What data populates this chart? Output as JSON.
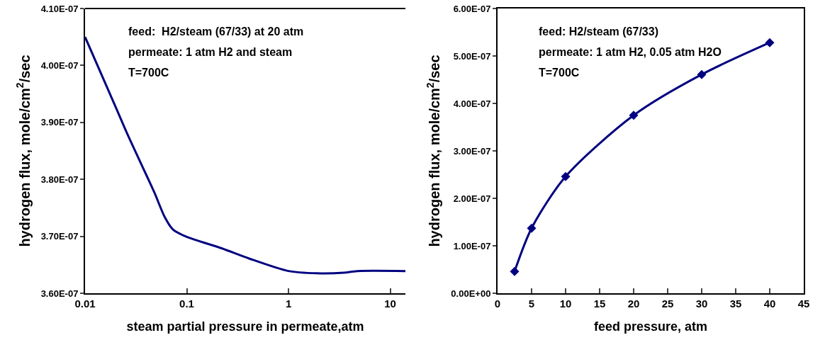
{
  "chart_data": [
    {
      "type": "line",
      "xlabel": "steam partial pressure in permeate,atm",
      "ylabel": "hydrogen flux, mole/cm$^{2}$/sec",
      "annotations": [
        "feed:  H2/steam (67/33) at 20 atm",
        "permeate: 1 atm H2 and steam",
        "T=700C"
      ],
      "x": [
        0.01,
        0.02,
        0.026,
        0.035,
        0.048,
        0.061,
        0.073,
        0.1,
        0.22,
        0.41,
        1,
        1.89,
        3.47,
        4.73,
        14.1
      ],
      "series": [
        {
          "color": "#000080",
          "values": [
            4.05e-07,
            3.927e-07,
            3.88e-07,
            3.83e-07,
            3.777e-07,
            3.733e-07,
            3.712e-07,
            3.699e-07,
            3.679e-07,
            3.661e-07,
            3.639e-07,
            3.635e-07,
            3.636e-07,
            3.639e-07,
            3.639e-07
          ]
        }
      ],
      "log": "x",
      "xlim": [
        0.01,
        14.1
      ],
      "xticks": [
        0.01,
        0.1,
        1,
        10
      ],
      "ylim": [
        3.6e-07,
        4.1e-07
      ],
      "yticks": [
        {
          "value": 3.6e-07,
          "label": "3.60E-07"
        },
        {
          "value": 3.7e-07,
          "label": "3.70E-07"
        },
        {
          "value": 3.8e-07,
          "label": "3.80E-07"
        },
        {
          "value": 3.9e-07,
          "label": "3.90E-07"
        },
        {
          "value": 4e-07,
          "label": "4.00E-07"
        },
        {
          "value": 4.1e-07,
          "label": "4.10E-07"
        }
      ],
      "grid": false,
      "marker": "none",
      "line_style": "solid"
    },
    {
      "type": "line",
      "xlabel": "feed pressure, atm",
      "ylabel": "hydrogen flux, mole/cm$^{2}$/sec",
      "annotations": [
        "feed: H2/steam (67/33)",
        "permeate: 1 atm H2, 0.05 atm H2O",
        "T=700C"
      ],
      "x": [
        2.5,
        5,
        10,
        20,
        30,
        40
      ],
      "series": [
        {
          "color": "#000080",
          "values": [
            4.6e-08,
            1.37e-07,
            2.46e-07,
            3.75e-07,
            4.61e-07,
            5.28e-07
          ]
        }
      ],
      "xlim": [
        0,
        45
      ],
      "xticks": [
        0,
        5,
        10,
        15,
        20,
        25,
        30,
        35,
        40,
        45
      ],
      "ylim": [
        0,
        6e-07
      ],
      "yticks": [
        {
          "value": 0,
          "label": "0.00E+00"
        },
        {
          "value": 1e-07,
          "label": "1.00E-07"
        },
        {
          "value": 2e-07,
          "label": "2.00E-07"
        },
        {
          "value": 3e-07,
          "label": "3.00E-07"
        },
        {
          "value": 4e-07,
          "label": "4.00E-07"
        },
        {
          "value": 5e-07,
          "label": "5.00E-07"
        },
        {
          "value": 6e-07,
          "label": "6.00E-07"
        }
      ],
      "grid": false,
      "marker": "diamond",
      "line_style": "solid"
    }
  ]
}
